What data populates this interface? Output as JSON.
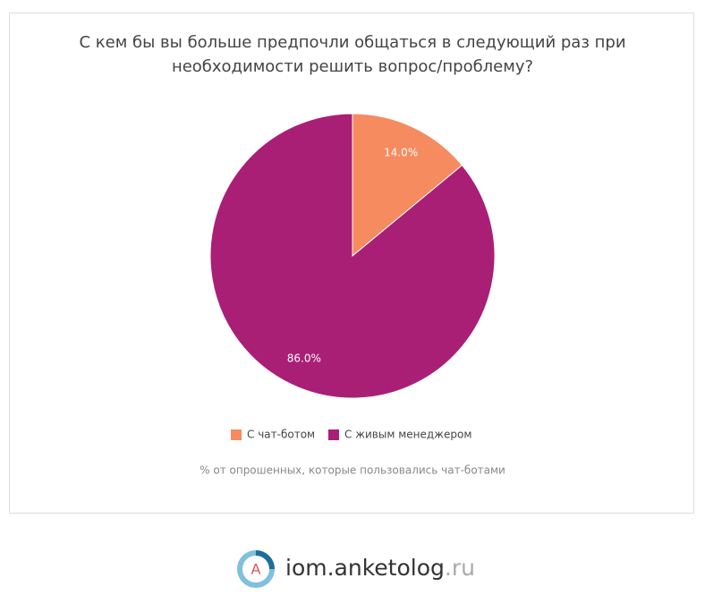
{
  "chart_data": {
    "type": "pie",
    "title": "С кем бы вы больше предпочли общаться в следующий раз при необходимости решить вопрос/проблему?",
    "categories": [
      "С чат-ботом",
      "С живым менеджером"
    ],
    "values": [
      14.0,
      86.0
    ],
    "value_labels": [
      "14.0%",
      "86.0%"
    ],
    "colors": [
      "#f58b5e",
      "#a91f76"
    ],
    "note": "% от опрошенных, которые пользовались чат-ботами"
  },
  "footer": {
    "logo_letter": "A",
    "site": "iom.anketolog",
    "domain": ".ru"
  }
}
